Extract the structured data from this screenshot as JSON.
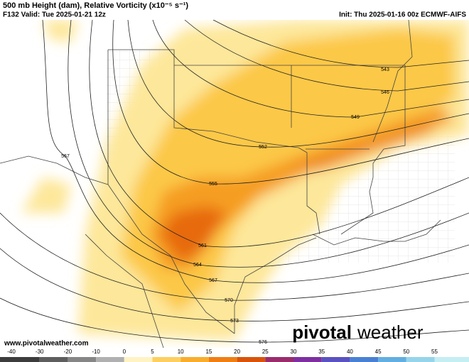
{
  "header": {
    "title": "500 mb Height (dam), Relative Vorticity (x10⁻⁵ s⁻¹)",
    "valid": "F132 Valid: Tue 2025-01-21 12z",
    "init": "Init: Thu 2025-01-16 00z ECMWF-AIFS"
  },
  "contour_labels": [
    "543",
    "546",
    "549",
    "552",
    "555",
    "561",
    "564",
    "567",
    "567",
    "570",
    "573",
    "576"
  ],
  "footer": {
    "url": "www.pivotalweather.com",
    "logo_left": "pivotal",
    "logo_right": "weather"
  },
  "colorbar": {
    "ticks": [
      -40,
      -30,
      -20,
      -10,
      0,
      5,
      10,
      15,
      20,
      25,
      30,
      35,
      40,
      45,
      50,
      55
    ],
    "colors": [
      "#3c3c3c",
      "#5e5e5e",
      "#868686",
      "#b0b0b0",
      "#fff3c4",
      "#fcd060",
      "#f8ad2c",
      "#ef7e13",
      "#d9540a",
      "#9a2c6c",
      "#7e2fa0",
      "#5a52c0",
      "#4a80d4",
      "#62aee0",
      "#96d4ea",
      "#c4eef2"
    ]
  }
}
